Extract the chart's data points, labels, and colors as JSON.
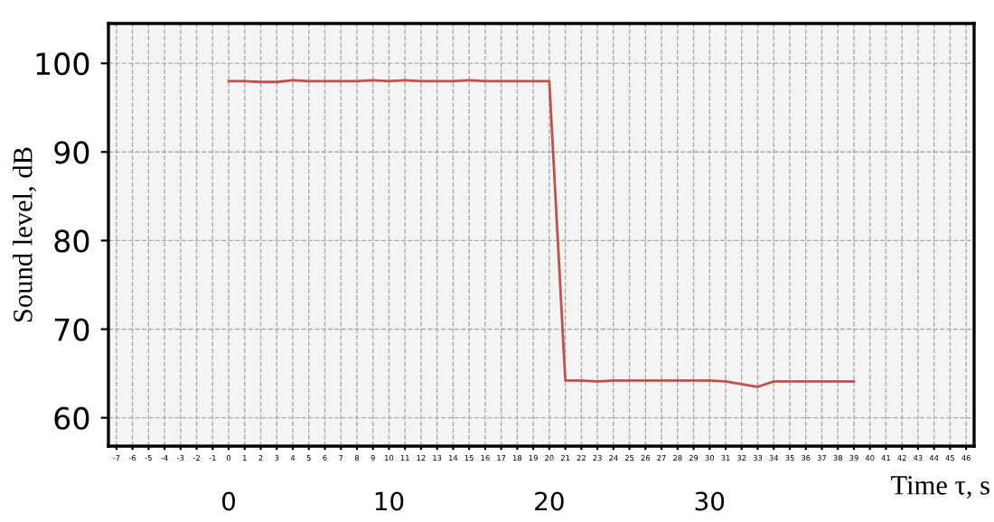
{
  "chart_data": {
    "type": "line",
    "xlabel": "Time τ, s",
    "ylabel": "Sound level, dB",
    "x": [
      0,
      1,
      2,
      3,
      4,
      5,
      6,
      7,
      8,
      9,
      10,
      11,
      12,
      13,
      14,
      15,
      16,
      17,
      18,
      19,
      20,
      21,
      22,
      23,
      24,
      25,
      26,
      27,
      28,
      29,
      30,
      31,
      32,
      33,
      34,
      35,
      36,
      37,
      38,
      39
    ],
    "series": [
      {
        "color": "#c0504d",
        "values": [
          98,
          98,
          97.9,
          97.9,
          98.1,
          98,
          98,
          98,
          98,
          98.1,
          98,
          98.1,
          98,
          98,
          98,
          98.1,
          98,
          98,
          98,
          98,
          98,
          64.2,
          64.2,
          64.1,
          64.2,
          64.2,
          64.2,
          64.2,
          64.2,
          64.2,
          64.2,
          64.1,
          63.8,
          63.5,
          64.1,
          64.1,
          64.1,
          64.1,
          64.1,
          64.1
        ]
      }
    ],
    "xlim": [
      -7.5,
      46.5
    ],
    "xticks": [
      -7,
      -6,
      -5,
      -4,
      -3,
      -2,
      -1,
      0,
      1,
      2,
      3,
      4,
      5,
      6,
      7,
      8,
      9,
      10,
      11,
      12,
      13,
      14,
      15,
      16,
      17,
      18,
      19,
      20,
      21,
      22,
      23,
      24,
      25,
      26,
      27,
      28,
      29,
      30,
      31,
      32,
      33,
      34,
      35,
      36,
      37,
      38,
      39,
      40,
      41,
      42,
      43,
      44,
      45,
      46
    ],
    "x2ticks": [
      0,
      10,
      20,
      30
    ],
    "x2lim": [
      -7.5,
      46.5
    ],
    "ylim": [
      56.8,
      104.5
    ],
    "yticks": [
      60,
      70,
      80,
      90,
      100
    ],
    "grid": true,
    "marker": "none",
    "line_style": "solid"
  }
}
